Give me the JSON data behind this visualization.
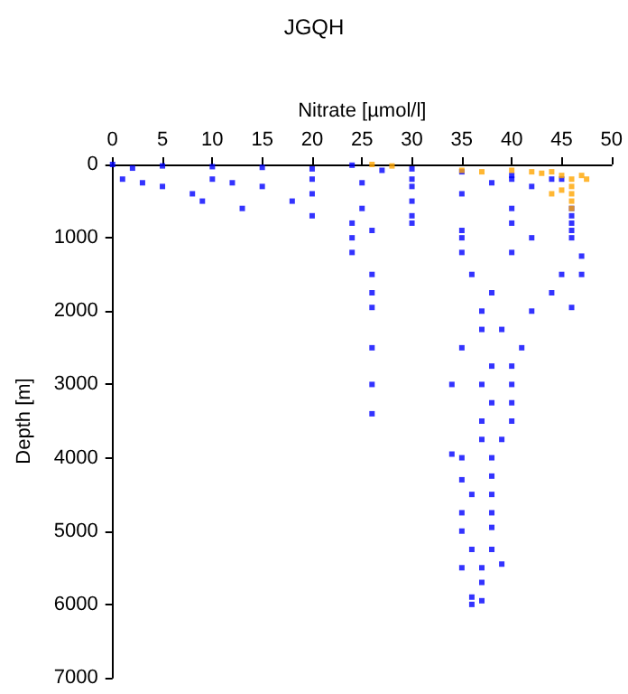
{
  "chart_data": {
    "type": "scatter",
    "title": "JGQH",
    "xlabel": "Nitrate [µmol/l]",
    "ylabel": "Depth [m]",
    "xlim": [
      0,
      50
    ],
    "xticks": [
      0,
      5,
      10,
      15,
      20,
      25,
      30,
      35,
      40,
      45,
      50
    ],
    "ylim": [
      7000,
      0
    ],
    "yticks": [
      0,
      1000,
      2000,
      3000,
      4000,
      5000,
      6000,
      7000
    ],
    "grid": false,
    "marker": "square",
    "series": [
      {
        "color": "#0000ff",
        "x": [
          0,
          2,
          5,
          10,
          15,
          20,
          24,
          27,
          30,
          35,
          40,
          45,
          1,
          10,
          20,
          30,
          40,
          44,
          3,
          12,
          25,
          38,
          5,
          15,
          30,
          42,
          8,
          20,
          35,
          9,
          18,
          30,
          13,
          25,
          40,
          46,
          20,
          30,
          46,
          24,
          30,
          40,
          46,
          26,
          35,
          46,
          24,
          35,
          42,
          46,
          24,
          35,
          40,
          47,
          26,
          36,
          45,
          47,
          26,
          38,
          44,
          26,
          37,
          42,
          46,
          37,
          39,
          26,
          35,
          41,
          38,
          40,
          26,
          34,
          37,
          40,
          38,
          40,
          26,
          37,
          40,
          37,
          39,
          34,
          35,
          38,
          35,
          38,
          36,
          38,
          35,
          38,
          35,
          38,
          36,
          38,
          35,
          37,
          39,
          37,
          36,
          37,
          36
        ],
        "values": [
          0,
          50,
          20,
          30,
          40,
          60,
          10,
          80,
          60,
          100,
          150,
          200,
          200,
          200,
          200,
          200,
          200,
          200,
          250,
          250,
          250,
          250,
          300,
          300,
          300,
          300,
          400,
          400,
          400,
          500,
          500,
          500,
          600,
          600,
          600,
          600,
          700,
          700,
          700,
          800,
          800,
          800,
          800,
          900,
          900,
          900,
          1000,
          1000,
          1000,
          1000,
          1200,
          1200,
          1200,
          1250,
          1500,
          1500,
          1500,
          1500,
          1750,
          1750,
          1750,
          1950,
          2000,
          2000,
          1950,
          2250,
          2250,
          2500,
          2500,
          2500,
          2750,
          2750,
          3000,
          3000,
          3000,
          3000,
          3250,
          3250,
          3400,
          3500,
          3500,
          3750,
          3750,
          3950,
          4000,
          4000,
          4300,
          4250,
          4500,
          4500,
          4750,
          4750,
          5000,
          4950,
          5250,
          5250,
          5500,
          5500,
          5450,
          5700,
          5900,
          5950,
          6000
        ]
      },
      {
        "color": "#ffa500",
        "x": [
          26,
          28,
          35,
          37,
          40,
          42,
          43,
          44,
          45,
          46,
          47,
          47.5,
          46,
          46,
          46,
          46,
          44,
          45
        ],
        "values": [
          0,
          20,
          80,
          100,
          80,
          100,
          120,
          100,
          150,
          200,
          150,
          200,
          300,
          400,
          500,
          600,
          400,
          350
        ]
      }
    ]
  }
}
